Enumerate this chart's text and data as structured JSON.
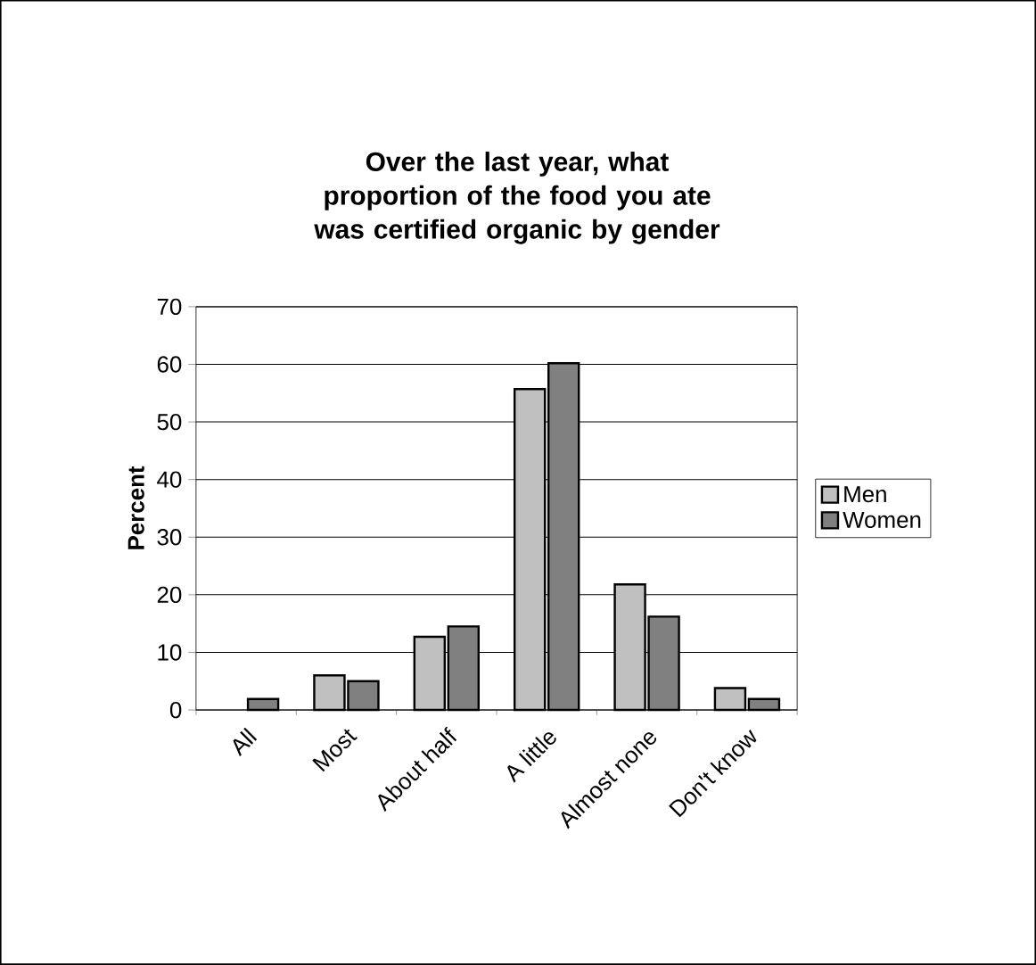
{
  "chart_data": {
    "type": "bar",
    "title": "Over the last year, what proportion of the food you ate was certified organic by gender",
    "ylabel": "Percent",
    "categories": [
      "All",
      "Most",
      "About half",
      "A little",
      "Almost none",
      "Don't know"
    ],
    "series": [
      {
        "name": "Men",
        "color": "#c0c0c0",
        "values": [
          null,
          6,
          12.7,
          55.7,
          21.8,
          3.8
        ]
      },
      {
        "name": "Women",
        "color": "#808080",
        "values": [
          1.9,
          5,
          14.5,
          60.2,
          16.2,
          1.9
        ]
      }
    ],
    "ylim": [
      0,
      70
    ],
    "yticks": [
      0,
      10,
      20,
      30,
      40,
      50,
      60,
      70
    ],
    "grid": "y",
    "legend": "right"
  }
}
